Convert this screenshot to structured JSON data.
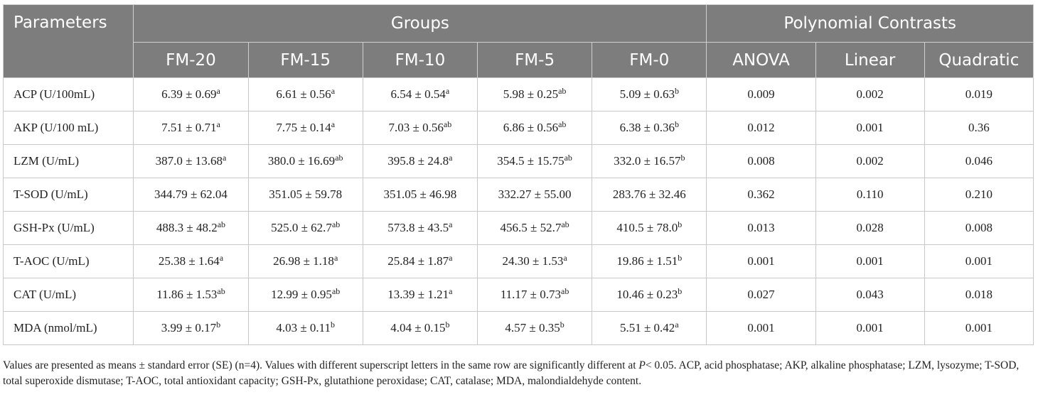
{
  "header": {
    "parameters": "Parameters",
    "groups": "Groups",
    "polynomial": "Polynomial Contrasts",
    "group_cols": [
      "FM-20",
      "FM-15",
      "FM-10",
      "FM-5",
      "FM-0"
    ],
    "poly_cols": [
      "ANOVA",
      "Linear",
      "Quadratic"
    ]
  },
  "rows": [
    {
      "name": "ACP (U/100mL)",
      "cells": [
        {
          "v": "6.39 ± 0.69",
          "s": "a"
        },
        {
          "v": "6.61 ± 0.56",
          "s": "a"
        },
        {
          "v": "6.54 ± 0.54",
          "s": "a"
        },
        {
          "v": "5.98 ± 0.25",
          "s": "ab"
        },
        {
          "v": "5.09 ± 0.63",
          "s": "b"
        }
      ],
      "p": [
        "0.009",
        "0.002",
        "0.019"
      ]
    },
    {
      "name": "AKP (U/100 mL)",
      "cells": [
        {
          "v": "7.51 ± 0.71",
          "s": "a"
        },
        {
          "v": "7.75 ± 0.14",
          "s": "a"
        },
        {
          "v": "7.03 ± 0.56",
          "s": "ab"
        },
        {
          "v": "6.86 ± 0.56",
          "s": "ab"
        },
        {
          "v": "6.38 ± 0.36",
          "s": "b"
        }
      ],
      "p": [
        "0.012",
        "0.001",
        "0.36"
      ]
    },
    {
      "name": "LZM (U/mL)",
      "cells": [
        {
          "v": "387.0 ± 13.68",
          "s": "a"
        },
        {
          "v": "380.0 ± 16.69",
          "s": "ab"
        },
        {
          "v": "395.8 ± 24.8",
          "s": "a"
        },
        {
          "v": "354.5 ± 15.75",
          "s": "ab"
        },
        {
          "v": "332.0 ± 16.57",
          "s": "b"
        }
      ],
      "p": [
        "0.008",
        "0.002",
        "0.046"
      ]
    },
    {
      "name": "T-SOD (U/mL)",
      "cells": [
        {
          "v": "344.79 ± 62.04",
          "s": ""
        },
        {
          "v": "351.05 ± 59.78",
          "s": ""
        },
        {
          "v": "351.05 ± 46.98",
          "s": ""
        },
        {
          "v": "332.27 ± 55.00",
          "s": ""
        },
        {
          "v": "283.76 ± 32.46",
          "s": ""
        }
      ],
      "p": [
        "0.362",
        "0.110",
        "0.210"
      ]
    },
    {
      "name": "GSH-Px (U/mL)",
      "cells": [
        {
          "v": "488.3 ± 48.2",
          "s": "ab"
        },
        {
          "v": "525.0 ± 62.7",
          "s": "ab"
        },
        {
          "v": "573.8 ± 43.5",
          "s": "a"
        },
        {
          "v": "456.5 ± 52.7",
          "s": "ab"
        },
        {
          "v": "410.5 ± 78.0",
          "s": "b"
        }
      ],
      "p": [
        "0.013",
        "0.028",
        "0.008"
      ]
    },
    {
      "name": "T-AOC (U/mL)",
      "cells": [
        {
          "v": "25.38 ± 1.64",
          "s": "a"
        },
        {
          "v": "26.98 ± 1.18",
          "s": "a"
        },
        {
          "v": "25.84 ± 1.87",
          "s": "a"
        },
        {
          "v": "24.30 ± 1.53",
          "s": "a"
        },
        {
          "v": "19.86 ± 1.51",
          "s": "b"
        }
      ],
      "p": [
        "0.001",
        "0.001",
        "0.001"
      ]
    },
    {
      "name": "CAT (U/mL)",
      "cells": [
        {
          "v": "11.86 ± 1.53",
          "s": "ab"
        },
        {
          "v": "12.99 ± 0.95",
          "s": "ab"
        },
        {
          "v": "13.39 ± 1.21",
          "s": "a"
        },
        {
          "v": "11.17 ± 0.73",
          "s": "ab"
        },
        {
          "v": "10.46 ± 0.23",
          "s": "b"
        }
      ],
      "p": [
        "0.027",
        "0.043",
        "0.018"
      ]
    },
    {
      "name": "MDA (nmol/mL)",
      "cells": [
        {
          "v": "3.99 ± 0.17",
          "s": "b"
        },
        {
          "v": "4.03 ± 0.11",
          "s": "b"
        },
        {
          "v": "4.04 ± 0.15",
          "s": "b"
        },
        {
          "v": "4.57 ± 0.35",
          "s": "b"
        },
        {
          "v": "5.51 ± 0.42",
          "s": "a"
        }
      ],
      "p": [
        "0.001",
        "0.001",
        "0.001"
      ]
    }
  ],
  "footnote": {
    "part1": "Values are presented as means ± standard error (SE) (n=4). Values with different superscript letters in the same row are significantly different at ",
    "p": "P",
    "part2": "< 0.05. ACP, acid phosphatase; AKP, alkaline phosphatase; LZM, lysozyme; T-SOD, total superoxide dismutase; T-AOC, total antioxidant capacity; GSH-Px, glutathione peroxidase; CAT, catalase; MDA, malondialdehyde content."
  }
}
